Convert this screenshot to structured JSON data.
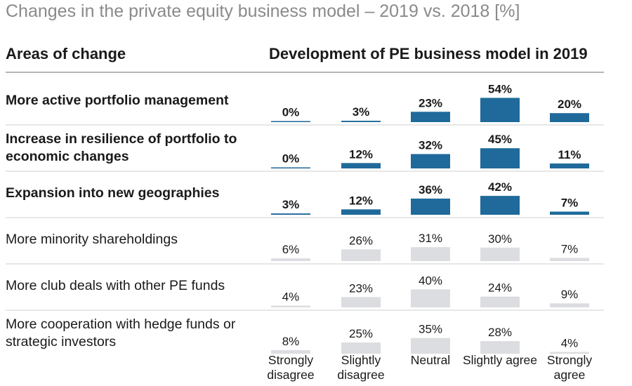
{
  "title": "Changes in the private equity business model – 2019 vs. 2018 [%]",
  "header": {
    "left": "Areas of change",
    "right": "Development of  PE business model in 2019"
  },
  "colors": {
    "highlight": "#1f6a9a",
    "muted": "#dcdde0",
    "divider": "#cfcfcf"
  },
  "chart_data": {
    "type": "table",
    "categories": [
      "Strongly disagree",
      "Slightly disagree",
      "Neutral",
      "Slightly agree",
      "Strongly agree"
    ],
    "column_labels": [
      [
        "Strongly",
        "disagree"
      ],
      [
        "Slightly",
        "disagree"
      ],
      [
        "Neutral"
      ],
      [
        "Slightly agree"
      ],
      [
        "Strongly",
        "agree"
      ]
    ],
    "unit": "%",
    "rows": [
      {
        "label": [
          "More active portfolio management"
        ],
        "highlight": true,
        "values": [
          0,
          3,
          23,
          54,
          20
        ]
      },
      {
        "label": [
          "Increase in resilience of portfolio to",
          "economic changes"
        ],
        "highlight": true,
        "values": [
          0,
          12,
          32,
          45,
          11
        ]
      },
      {
        "label": [
          "Expansion into new geographies"
        ],
        "highlight": true,
        "values": [
          3,
          12,
          36,
          42,
          7
        ]
      },
      {
        "label": [
          "More minority shareholdings"
        ],
        "highlight": false,
        "values": [
          6,
          26,
          31,
          30,
          7
        ]
      },
      {
        "label": [
          "More club deals with other PE funds"
        ],
        "highlight": false,
        "values": [
          4,
          23,
          40,
          24,
          9
        ]
      },
      {
        "label": [
          "More cooperation with hedge funds or",
          "strategic investors"
        ],
        "highlight": false,
        "values": [
          8,
          25,
          35,
          28,
          4
        ]
      }
    ]
  }
}
